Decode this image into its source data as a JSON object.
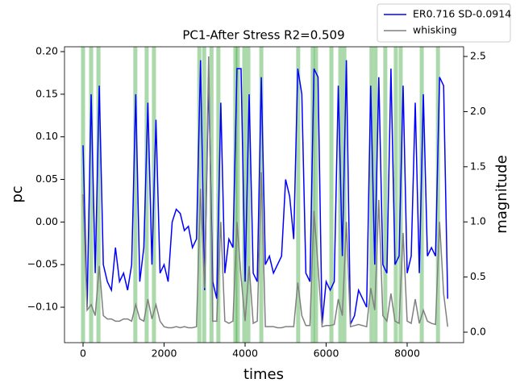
{
  "chart_data": {
    "type": "line",
    "title": "PC1-After Stress R2=0.509",
    "xlabel": "times",
    "ylabel": "pc",
    "y2label": "magnitude",
    "legend": "upper right",
    "x": [
      0,
      100,
      200,
      300,
      400,
      500,
      600,
      700,
      800,
      900,
      1000,
      1100,
      1200,
      1300,
      1400,
      1500,
      1600,
      1700,
      1800,
      1900,
      2000,
      2100,
      2200,
      2300,
      2400,
      2500,
      2600,
      2700,
      2800,
      2900,
      3000,
      3100,
      3200,
      3300,
      3400,
      3500,
      3600,
      3700,
      3800,
      3900,
      4000,
      4100,
      4200,
      4300,
      4400,
      4500,
      4600,
      4700,
      4800,
      4900,
      5000,
      5100,
      5200,
      5300,
      5400,
      5500,
      5600,
      5700,
      5800,
      5900,
      6000,
      6100,
      6200,
      6300,
      6400,
      6500,
      6600,
      6700,
      6800,
      6900,
      7000,
      7100,
      7200,
      7300,
      7400,
      7500,
      7600,
      7700,
      7800,
      7900,
      8000,
      8100,
      8200,
      8300,
      8400,
      8500,
      8600,
      8700,
      8800,
      8900,
      9000
    ],
    "series": [
      {
        "name": "ER0.716 SD-0.0914",
        "color": "#0000ff",
        "values": [
          0.09,
          -0.1,
          0.15,
          -0.06,
          0.16,
          -0.05,
          -0.07,
          -0.08,
          -0.03,
          -0.07,
          -0.06,
          -0.08,
          -0.05,
          0.15,
          -0.07,
          -0.03,
          0.14,
          -0.05,
          0.12,
          -0.06,
          -0.05,
          -0.07,
          0.0,
          0.015,
          0.01,
          -0.01,
          -0.005,
          -0.03,
          -0.02,
          0.19,
          -0.08,
          0.17,
          -0.07,
          -0.09,
          0.14,
          -0.06,
          -0.02,
          -0.03,
          0.18,
          0.18,
          -0.07,
          0.15,
          -0.06,
          -0.07,
          0.17,
          -0.05,
          -0.04,
          -0.06,
          -0.05,
          -0.04,
          0.05,
          0.03,
          -0.02,
          0.18,
          0.15,
          -0.06,
          -0.07,
          0.18,
          0.17,
          -0.12,
          -0.07,
          -0.08,
          -0.07,
          0.16,
          -0.04,
          0.19,
          -0.12,
          -0.11,
          -0.08,
          -0.09,
          -0.1,
          0.16,
          -0.05,
          0.17,
          -0.05,
          -0.06,
          0.18,
          -0.05,
          -0.04,
          0.16,
          -0.06,
          -0.04,
          0.14,
          -0.06,
          0.15,
          -0.04,
          -0.03,
          -0.04,
          0.17,
          0.16,
          -0.09
        ]
      },
      {
        "name": "whisking",
        "color": "#808080",
        "axis": "y2",
        "values": [
          1.25,
          0.2,
          0.25,
          0.15,
          0.6,
          0.15,
          0.12,
          0.12,
          0.1,
          0.1,
          0.12,
          0.12,
          0.1,
          0.25,
          0.12,
          0.1,
          0.3,
          0.12,
          0.25,
          0.1,
          0.05,
          0.04,
          0.04,
          0.05,
          0.04,
          0.05,
          0.04,
          0.04,
          0.05,
          1.3,
          0.4,
          2.5,
          0.1,
          0.1,
          1.0,
          0.1,
          0.08,
          0.1,
          1.0,
          0.5,
          0.1,
          0.6,
          0.08,
          0.1,
          1.45,
          0.05,
          0.05,
          0.05,
          0.04,
          0.04,
          0.05,
          0.05,
          0.05,
          0.45,
          0.15,
          0.06,
          0.06,
          1.1,
          0.6,
          0.05,
          0.06,
          0.06,
          0.07,
          0.3,
          0.15,
          1.0,
          0.05,
          0.06,
          0.07,
          0.06,
          0.05,
          0.4,
          0.2,
          1.2,
          0.15,
          0.1,
          0.35,
          0.1,
          0.08,
          0.9,
          0.1,
          0.08,
          0.3,
          0.08,
          0.2,
          0.1,
          0.08,
          0.07,
          1.0,
          0.35,
          0.05
        ]
      }
    ],
    "highlight_x": [
      0,
      200,
      380,
      1290,
      1570,
      1750,
      2870,
      2990,
      3170,
      3340,
      3760,
      3820,
      3980,
      4080,
      4400,
      5310,
      5670,
      5750,
      6130,
      6350,
      6450,
      7120,
      7220,
      7460,
      7720,
      7840,
      8360,
      8760
    ],
    "highlight_width": 100,
    "highlight_color": "#2ca02c",
    "xlim": [
      -458,
      9393
    ],
    "xticks": [
      0,
      2000,
      4000,
      6000,
      8000
    ],
    "ylim": [
      -0.1416,
      0.2057
    ],
    "yticks": [
      {
        "value": -0.1,
        "label": "−0.10"
      },
      {
        "value": -0.05,
        "label": "−0.05"
      },
      {
        "value": 0,
        "label": "0.00"
      },
      0.05,
      {
        "value": 0.1,
        "label": "0.10"
      },
      0.15,
      {
        "value": 0.2,
        "label": "0.20"
      }
    ],
    "y2lim": [
      -0.095,
      2.588
    ],
    "y2ticks": [
      {
        "value": 0,
        "label": "0.0"
      },
      0.5,
      {
        "value": 1,
        "label": "1.0"
      },
      1.5,
      {
        "value": 2,
        "label": "2.0"
      },
      2.5
    ]
  }
}
